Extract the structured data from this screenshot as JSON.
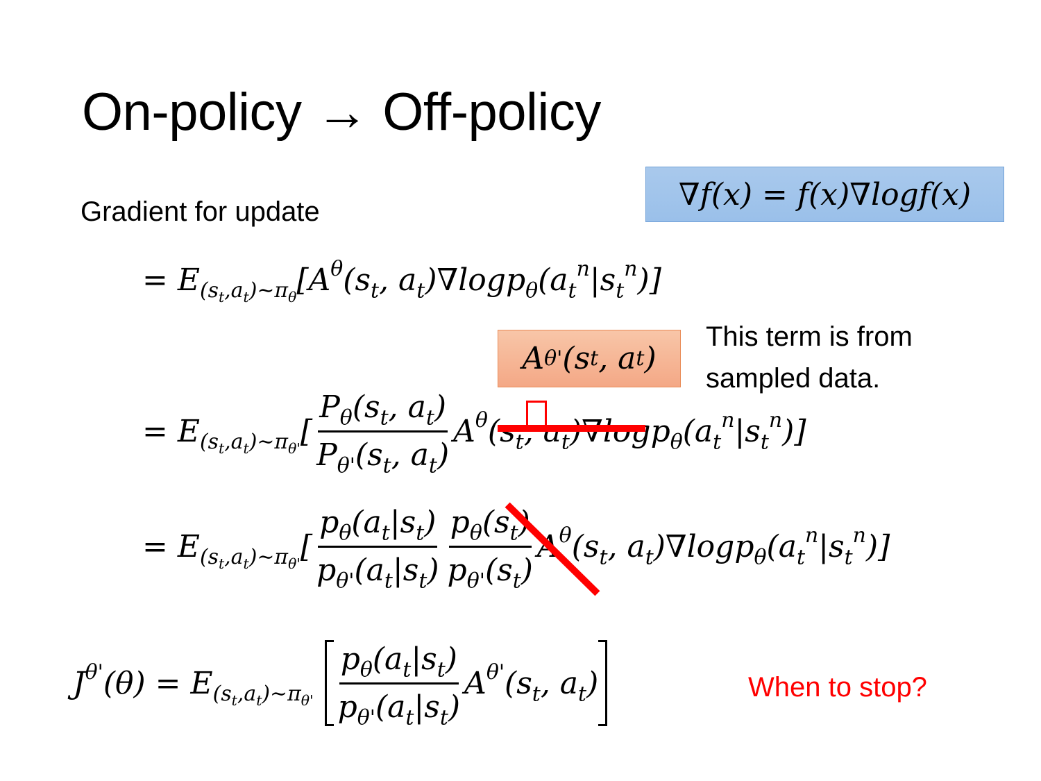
{
  "slide": {
    "title": "On-policy → Off-policy",
    "subtitle": "Gradient for update",
    "identity_box": "∇f(x) = f(x)∇logf(x)",
    "advantage_box": "A^{θ'}(s_t, a_t)",
    "annotation_line1": "This term is from",
    "annotation_line2": "sampled data.",
    "question": "When to stop?",
    "colors": {
      "blue_box": "#9dc3e6",
      "orange_box": "#f4b183",
      "strike": "#ff0000",
      "question": "#ff0000"
    }
  },
  "equations": {
    "eq1": {
      "prefix": "= E_{(s_t,a_t)∼π_θ}[A^θ(s_t, a_t)∇logp_θ(a_t^n|s_t^n)]"
    },
    "eq2": {
      "prefix": "= E_{(s_t,a_t)∼π_{θ'}}[",
      "num": "P_θ(s_t, a_t)",
      "den": "P_{θ'}(s_t, a_t)",
      "suffix": "A^θ(s_t, a_t)∇logp_θ(a_t^n|s_t^n)]"
    },
    "eq3": {
      "prefix": "= E_{(s_t,a_t)∼π_{θ'}}[",
      "num1": "p_θ(a_t|s_t)",
      "den1": "p_{θ'}(a_t|s_t)",
      "num2": "p_θ(s_t)",
      "den2": "p_{θ'}(s_t)",
      "suffix": "A^θ(s_t, a_t)∇logp_θ(a_t^n|s_t^n)]"
    },
    "eq4": {
      "lhs": "J^{θ'}(θ) =  E_{(s_t,a_t)∼π_{θ'}}",
      "num": "p_θ(a_t|s_t)",
      "den": "p_{θ'}(a_t|s_t)",
      "suffix": "A^{θ'}(s_t, a_t)"
    }
  }
}
